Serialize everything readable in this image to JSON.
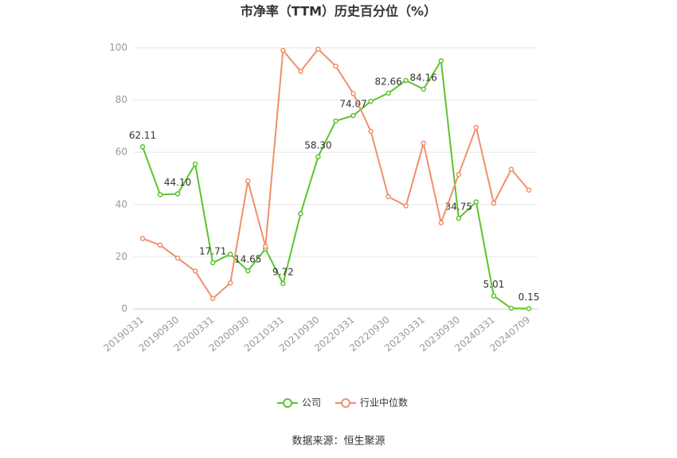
{
  "chart_data": {
    "type": "line",
    "title": "市净率（TTM）历史百分位（%）",
    "categories": [
      "20190331",
      null,
      "20190930",
      null,
      "20200331",
      null,
      "20200930",
      null,
      "20210331",
      null,
      "20210930",
      null,
      "20220331",
      null,
      "20220930",
      null,
      "20230331",
      null,
      "20230930",
      null,
      "20240331",
      null,
      "20240709"
    ],
    "series": [
      {
        "name": "公司",
        "color": "#5cc42e",
        "values": [
          62.11,
          43.8,
          44.1,
          55.5,
          17.71,
          21,
          14.65,
          23,
          9.72,
          36.5,
          58.3,
          72,
          74.07,
          79.5,
          82.66,
          87.5,
          84.16,
          95,
          34.75,
          41,
          5.01,
          0.3,
          0.15
        ],
        "value_labels": [
          "62.11",
          null,
          "44.10",
          null,
          "17.71",
          null,
          "14.65",
          null,
          "9.72",
          null,
          "58.30",
          null,
          "74.07",
          null,
          "82.66",
          null,
          "84.16",
          null,
          "34.75",
          null,
          "5.01",
          null,
          "0.15"
        ]
      },
      {
        "name": "行业中位数",
        "color": "#f0906a",
        "values": [
          27,
          24.5,
          19.5,
          14.5,
          4,
          10,
          49,
          24,
          99,
          91,
          99.5,
          93,
          82.5,
          68,
          43,
          39.5,
          63.5,
          33,
          51.5,
          69.5,
          40.5,
          53.5,
          45.5
        ]
      }
    ],
    "ylim": [
      0,
      100
    ],
    "yticks": [
      0,
      20,
      40,
      60,
      80,
      100
    ],
    "grid": true,
    "source": "数据来源：恒生聚源"
  }
}
